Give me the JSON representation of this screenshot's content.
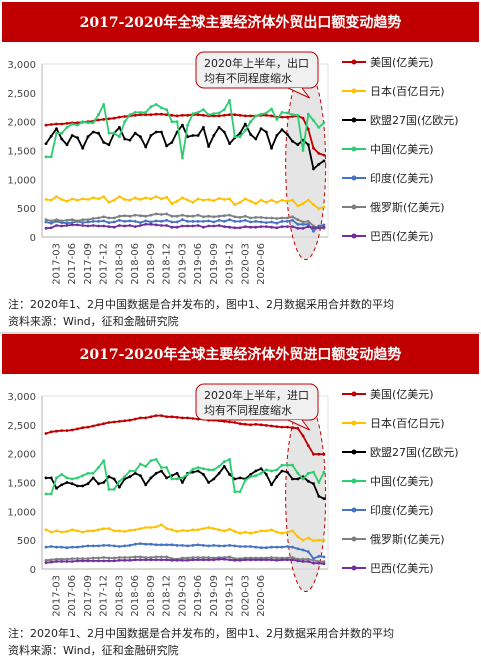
{
  "charts": [
    {
      "title": "2017-2020年全球主要经济体外贸出口额变动趋势",
      "callout": [
        "2020年上半年，出口",
        "均有不同程度缩水"
      ],
      "note_lines": [
        "注：2020年1、2月中国数据是合并发布的，图中1、2月数据采用合并数的平均",
        "资料来源：Wind，征和金融研究院"
      ],
      "colors": {
        "美国": "#c00000",
        "日本": "#ffc000",
        "欧盟27国": "#000000",
        "中国": "#2ecc71",
        "印度": "#4472c4",
        "俄罗斯": "#7f7f7f",
        "巴西": "#7030a0"
      }
    },
    {
      "title": "2017-2020年全球主要经济体外贸进口额变动趋势",
      "callout": [
        "2020年上半年，进口",
        "均有不同程度缩水"
      ],
      "note_lines": [
        "注：2020年1、2月中国数据是合并发布的，图中1、2月数据采用合并数的平均",
        "资料来源：Wind，征和金融研究院"
      ],
      "colors": {
        "美国": "#c00000",
        "日本": "#ffc000",
        "欧盟27国": "#000000",
        "中国": "#2ecc71",
        "印度": "#4472c4",
        "俄罗斯": "#7f7f7f",
        "巴西": "#7030a0"
      }
    }
  ],
  "chart_data": [
    {
      "type": "line",
      "title": "2017-2020年全球主要经济体外贸出口额变动趋势",
      "xlabels": [
        "2017-03",
        "2017-06",
        "2017-09",
        "2017-12",
        "2018-03",
        "2018-06",
        "2018-09",
        "2018-12",
        "2019-03",
        "2019-06",
        "2019-09",
        "2019-12",
        "2020-03",
        "2020-06"
      ],
      "yticks": [
        "0",
        "500",
        "1,000",
        "1,500",
        "2,000",
        "2,500",
        "3,000"
      ],
      "ylim": [
        0,
        3000
      ],
      "x_start": "2017-01",
      "series": [
        {
          "name": "美国(亿美元)",
          "key": "美国",
          "values": [
            1940,
            1950,
            1960,
            1960,
            1970,
            1980,
            1980,
            1990,
            2000,
            2010,
            2030,
            2040,
            2050,
            2060,
            2080,
            2090,
            2100,
            2110,
            2120,
            2120,
            2120,
            2130,
            2130,
            2120,
            2110,
            2100,
            2110,
            2110,
            2120,
            2120,
            2110,
            2100,
            2100,
            2100,
            2110,
            2120,
            2120,
            2110,
            2100,
            2100,
            2100,
            2110,
            2110,
            2100,
            2080,
            2080,
            2080,
            2090,
            2100,
            2060,
            1870,
            1540,
            1450,
            1420
          ]
        },
        {
          "name": "日本(百亿日元)",
          "key": "日本",
          "values": [
            650,
            640,
            700,
            650,
            620,
            660,
            640,
            660,
            650,
            680,
            660,
            700,
            600,
            640,
            700,
            650,
            640,
            680,
            650,
            680,
            660,
            700,
            660,
            690,
            580,
            620,
            680,
            640,
            600,
            660,
            640,
            650,
            630,
            670,
            650,
            660,
            560,
            600,
            660,
            620,
            580,
            640,
            600,
            640,
            600,
            640,
            620,
            640,
            540,
            580,
            640,
            560,
            490,
            520
          ]
        },
        {
          "name": "欧盟27国(亿欧元)",
          "key": "欧盟27国",
          "values": [
            1620,
            1750,
            1880,
            1700,
            1600,
            1760,
            1720,
            1540,
            1740,
            1820,
            1800,
            1640,
            1600,
            1800,
            1900,
            1700,
            1680,
            1800,
            1740,
            1560,
            1760,
            1820,
            1820,
            1580,
            1640,
            1820,
            1940,
            1740,
            1760,
            1760,
            1900,
            1570,
            1760,
            1900,
            1820,
            1620,
            1720,
            1800,
            1960,
            1780,
            1700,
            1880,
            1820,
            1540,
            1760,
            1860,
            1780,
            1660,
            1600,
            1680,
            1600,
            1180,
            1260,
            1320
          ]
        },
        {
          "name": "中国(亿美元)",
          "key": "中国",
          "values": [
            1390,
            1390,
            1800,
            1800,
            1900,
            1960,
            1940,
            2000,
            1980,
            1980,
            2120,
            2300,
            1800,
            1800,
            1740,
            2000,
            2120,
            2160,
            2160,
            2160,
            2260,
            2300,
            2240,
            2210,
            2000,
            2000,
            1370,
            1940,
            2140,
            2160,
            2210,
            2120,
            2140,
            2150,
            2210,
            2370,
            1740,
            1740,
            1850,
            2000,
            2100,
            2130,
            2150,
            2220,
            2040,
            2160,
            2150,
            2120,
            2110,
            1500,
            2130,
            2020,
            1900,
            1980
          ]
        },
        {
          "name": "印度(亿美元)",
          "key": "印度",
          "values": [
            260,
            240,
            270,
            250,
            240,
            250,
            270,
            250,
            260,
            270,
            270,
            280,
            250,
            260,
            290,
            270,
            280,
            270,
            250,
            280,
            260,
            280,
            270,
            290,
            260,
            260,
            300,
            270,
            270,
            270,
            270,
            280,
            260,
            290,
            270,
            300,
            270,
            270,
            290,
            260,
            270,
            260,
            250,
            260,
            240,
            270,
            270,
            290,
            220,
            220,
            220,
            100,
            190,
            210
          ]
        },
        {
          "name": "俄罗斯(亿美元)",
          "key": "俄罗斯",
          "values": [
            300,
            280,
            300,
            280,
            290,
            300,
            280,
            300,
            300,
            320,
            330,
            350,
            330,
            330,
            360,
            370,
            360,
            380,
            370,
            360,
            380,
            400,
            390,
            400,
            360,
            360,
            380,
            360,
            360,
            380,
            350,
            360,
            350,
            360,
            370,
            380,
            350,
            340,
            360,
            330,
            340,
            340,
            330,
            330,
            320,
            330,
            330,
            350,
            300,
            260,
            270,
            190,
            160,
            150
          ]
        },
        {
          "name": "巴西(亿美元)",
          "key": "巴西",
          "values": [
            150,
            160,
            200,
            190,
            200,
            210,
            210,
            200,
            190,
            200,
            190,
            190,
            180,
            170,
            200,
            190,
            200,
            180,
            200,
            220,
            220,
            210,
            200,
            200,
            170,
            170,
            190,
            190,
            190,
            200,
            170,
            190,
            190,
            200,
            180,
            170,
            160,
            160,
            180,
            170,
            170,
            180,
            180,
            170,
            160,
            180,
            180,
            180,
            150,
            150,
            180,
            160,
            160,
            170
          ]
        }
      ]
    },
    {
      "type": "line",
      "title": "2017-2020年全球主要经济体外贸进口额变动趋势",
      "xlabels": [
        "2017-03",
        "2017-06",
        "2017-09",
        "2017-12",
        "2018-03",
        "2018-06",
        "2018-09",
        "2018-12",
        "2019-03",
        "2019-06",
        "2019-09",
        "2019-12",
        "2020-03",
        "2020-06"
      ],
      "yticks": [
        "0",
        "500",
        "1,000",
        "1,500",
        "2,000",
        "2,500",
        "3,000"
      ],
      "ylim": [
        0,
        3000
      ],
      "x_start": "2017-01",
      "series": [
        {
          "name": "美国(亿美元)",
          "key": "美国",
          "values": [
            2350,
            2380,
            2390,
            2400,
            2400,
            2410,
            2430,
            2450,
            2460,
            2480,
            2500,
            2520,
            2540,
            2550,
            2560,
            2570,
            2580,
            2600,
            2620,
            2620,
            2640,
            2660,
            2660,
            2640,
            2640,
            2630,
            2620,
            2620,
            2610,
            2600,
            2600,
            2580,
            2580,
            2570,
            2560,
            2550,
            2540,
            2520,
            2510,
            2500,
            2510,
            2500,
            2490,
            2480,
            2470,
            2460,
            2460,
            2450,
            2440,
            2310,
            2140,
            1990,
            1990,
            1990
          ]
        },
        {
          "name": "日本(百亿日元)",
          "key": "日本",
          "values": [
            680,
            640,
            660,
            640,
            650,
            680,
            660,
            640,
            660,
            660,
            680,
            700,
            700,
            660,
            660,
            650,
            670,
            680,
            700,
            720,
            720,
            730,
            770,
            700,
            680,
            650,
            670,
            660,
            680,
            680,
            700,
            720,
            700,
            680,
            660,
            690,
            650,
            620,
            640,
            620,
            640,
            660,
            660,
            680,
            640,
            620,
            640,
            660,
            560,
            500,
            540,
            490,
            500,
            500
          ]
        },
        {
          "name": "欧盟27国(亿欧元)",
          "key": "欧盟27国",
          "values": [
            1580,
            1580,
            1400,
            1460,
            1500,
            1480,
            1440,
            1440,
            1480,
            1580,
            1480,
            1500,
            1600,
            1560,
            1420,
            1560,
            1600,
            1660,
            1620,
            1460,
            1580,
            1660,
            1700,
            1580,
            1620,
            1660,
            1500,
            1660,
            1680,
            1700,
            1640,
            1500,
            1560,
            1660,
            1780,
            1640,
            1560,
            1580,
            1560,
            1640,
            1700,
            1740,
            1640,
            1460,
            1600,
            1700,
            1680,
            1560,
            1560,
            1600,
            1520,
            1480,
            1260,
            1220
          ]
        },
        {
          "name": "中国(亿美元)",
          "key": "中国",
          "values": [
            1300,
            1300,
            1580,
            1640,
            1580,
            1560,
            1580,
            1620,
            1660,
            1660,
            1760,
            1880,
            1380,
            1380,
            1520,
            1600,
            1700,
            1700,
            1820,
            1780,
            1880,
            1900,
            1760,
            1760,
            1560,
            1560,
            1580,
            1640,
            1730,
            1760,
            1740,
            1720,
            1720,
            1780,
            1860,
            1900,
            1340,
            1340,
            1540,
            1600,
            1620,
            1660,
            1720,
            1700,
            1720,
            1800,
            1800,
            1800,
            1660,
            1560,
            1660,
            1680,
            1500,
            1680
          ]
        },
        {
          "name": "印度(亿美元)",
          "key": "印度",
          "values": [
            380,
            390,
            380,
            380,
            370,
            380,
            380,
            390,
            400,
            400,
            400,
            410,
            410,
            400,
            390,
            400,
            410,
            430,
            440,
            430,
            430,
            420,
            420,
            420,
            420,
            410,
            410,
            400,
            410,
            420,
            410,
            400,
            410,
            400,
            400,
            410,
            400,
            390,
            390,
            390,
            380,
            370,
            370,
            380,
            380,
            380,
            390,
            380,
            350,
            330,
            300,
            180,
            220,
            210
          ]
        },
        {
          "name": "俄罗斯(亿美元)",
          "key": "俄罗斯",
          "values": [
            150,
            160,
            170,
            170,
            170,
            180,
            180,
            180,
            180,
            190,
            190,
            200,
            190,
            190,
            200,
            200,
            200,
            210,
            210,
            200,
            200,
            210,
            210,
            210,
            180,
            170,
            190,
            190,
            200,
            200,
            200,
            200,
            190,
            200,
            200,
            210,
            180,
            180,
            190,
            190,
            190,
            190,
            190,
            200,
            190,
            190,
            190,
            200,
            170,
            170,
            170,
            150,
            130,
            130
          ]
        },
        {
          "name": "巴西(亿美元)",
          "key": "巴西",
          "values": [
            110,
            120,
            130,
            130,
            130,
            130,
            140,
            140,
            140,
            140,
            140,
            140,
            140,
            140,
            150,
            150,
            150,
            160,
            160,
            160,
            160,
            160,
            160,
            160,
            150,
            150,
            150,
            150,
            160,
            160,
            160,
            160,
            160,
            170,
            170,
            160,
            150,
            150,
            160,
            160,
            160,
            160,
            160,
            160,
            150,
            160,
            160,
            160,
            140,
            130,
            130,
            100,
            100,
            90
          ]
        }
      ]
    }
  ]
}
